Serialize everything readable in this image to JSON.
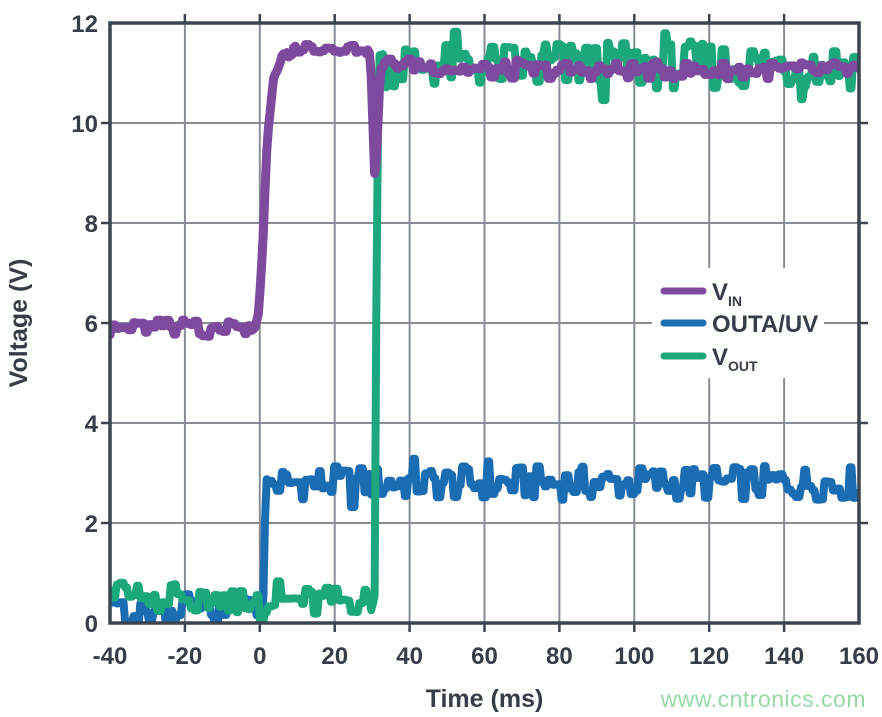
{
  "page": {
    "watermark": "www.cntronics.com"
  },
  "chart_data": {
    "type": "line",
    "title": "",
    "xlabel": "Time (ms)",
    "ylabel": "Voltage (V)",
    "xlim": [
      -40,
      160
    ],
    "ylim": [
      0,
      12
    ],
    "xticks": [
      -40,
      -20,
      0,
      20,
      40,
      60,
      80,
      100,
      120,
      140,
      160
    ],
    "xtick_labels": [
      "-40",
      "-20",
      "0",
      "20",
      "40",
      "60",
      "80",
      "100",
      "120",
      "140",
      "160"
    ],
    "yticks": [
      0,
      2,
      4,
      6,
      8,
      10,
      12
    ],
    "ytick_labels": [
      "0",
      "2",
      "4",
      "6",
      "8",
      "10",
      "12"
    ],
    "grid": true,
    "legend_position": "middle-right",
    "colors": {
      "background": "#ffffff",
      "border": "#3c4351",
      "grid": "#878c96",
      "text": "#363d47",
      "watermark": "#98d9a8",
      "vin": "#7e4a9e",
      "outa_uv": "#1a6db3",
      "vout": "#1ca77c"
    },
    "series": [
      {
        "name": "VIN",
        "legend": {
          "main": "V",
          "sub": "IN"
        },
        "color": "#7e4a9e",
        "width": 9,
        "z": 3,
        "points": [
          [
            -40,
            5.9,
            0.16
          ],
          [
            -2,
            5.9,
            0.16
          ],
          [
            -0.5,
            6.0,
            0.1
          ],
          [
            0.8,
            7.6,
            0.06
          ],
          [
            2,
            9.7,
            0.06
          ],
          [
            3.5,
            10.8,
            0.07
          ],
          [
            6,
            11.3,
            0.08
          ],
          [
            10,
            11.5,
            0.09
          ],
          [
            28,
            11.5,
            0.09
          ],
          [
            29.6,
            11.3,
            0.05
          ],
          [
            30.8,
            8.7,
            0.04
          ],
          [
            32.2,
            11.1,
            0.07
          ],
          [
            34,
            11.2,
            0.12
          ],
          [
            60,
            11.05,
            0.17
          ],
          [
            160,
            11.05,
            0.17
          ]
        ]
      },
      {
        "name": "OUTA/UV",
        "legend": {
          "main": "OUTA/UV",
          "sub": ""
        },
        "color": "#1a6db3",
        "width": 8,
        "z": 1,
        "points": [
          [
            -40,
            0.3,
            0.3
          ],
          [
            0.8,
            0.3,
            0.3
          ],
          [
            1.7,
            2.8,
            0.12
          ],
          [
            2.6,
            2.8,
            0.34
          ],
          [
            160,
            2.8,
            0.34
          ]
        ]
      },
      {
        "name": "VOUT",
        "legend": {
          "main": "V",
          "sub": "OUT"
        },
        "color": "#1ca77c",
        "width": 8,
        "z": 2,
        "points": [
          [
            -40,
            0.55,
            0.28
          ],
          [
            0,
            0.45,
            0.28
          ],
          [
            29.8,
            0.45,
            0.28
          ],
          [
            30.7,
            0.6,
            0.06
          ],
          [
            31.3,
            9.0,
            0.05
          ],
          [
            31.9,
            11.3,
            0.1
          ],
          [
            33.5,
            11.15,
            0.45
          ],
          [
            160,
            11.15,
            0.5
          ]
        ]
      }
    ]
  }
}
